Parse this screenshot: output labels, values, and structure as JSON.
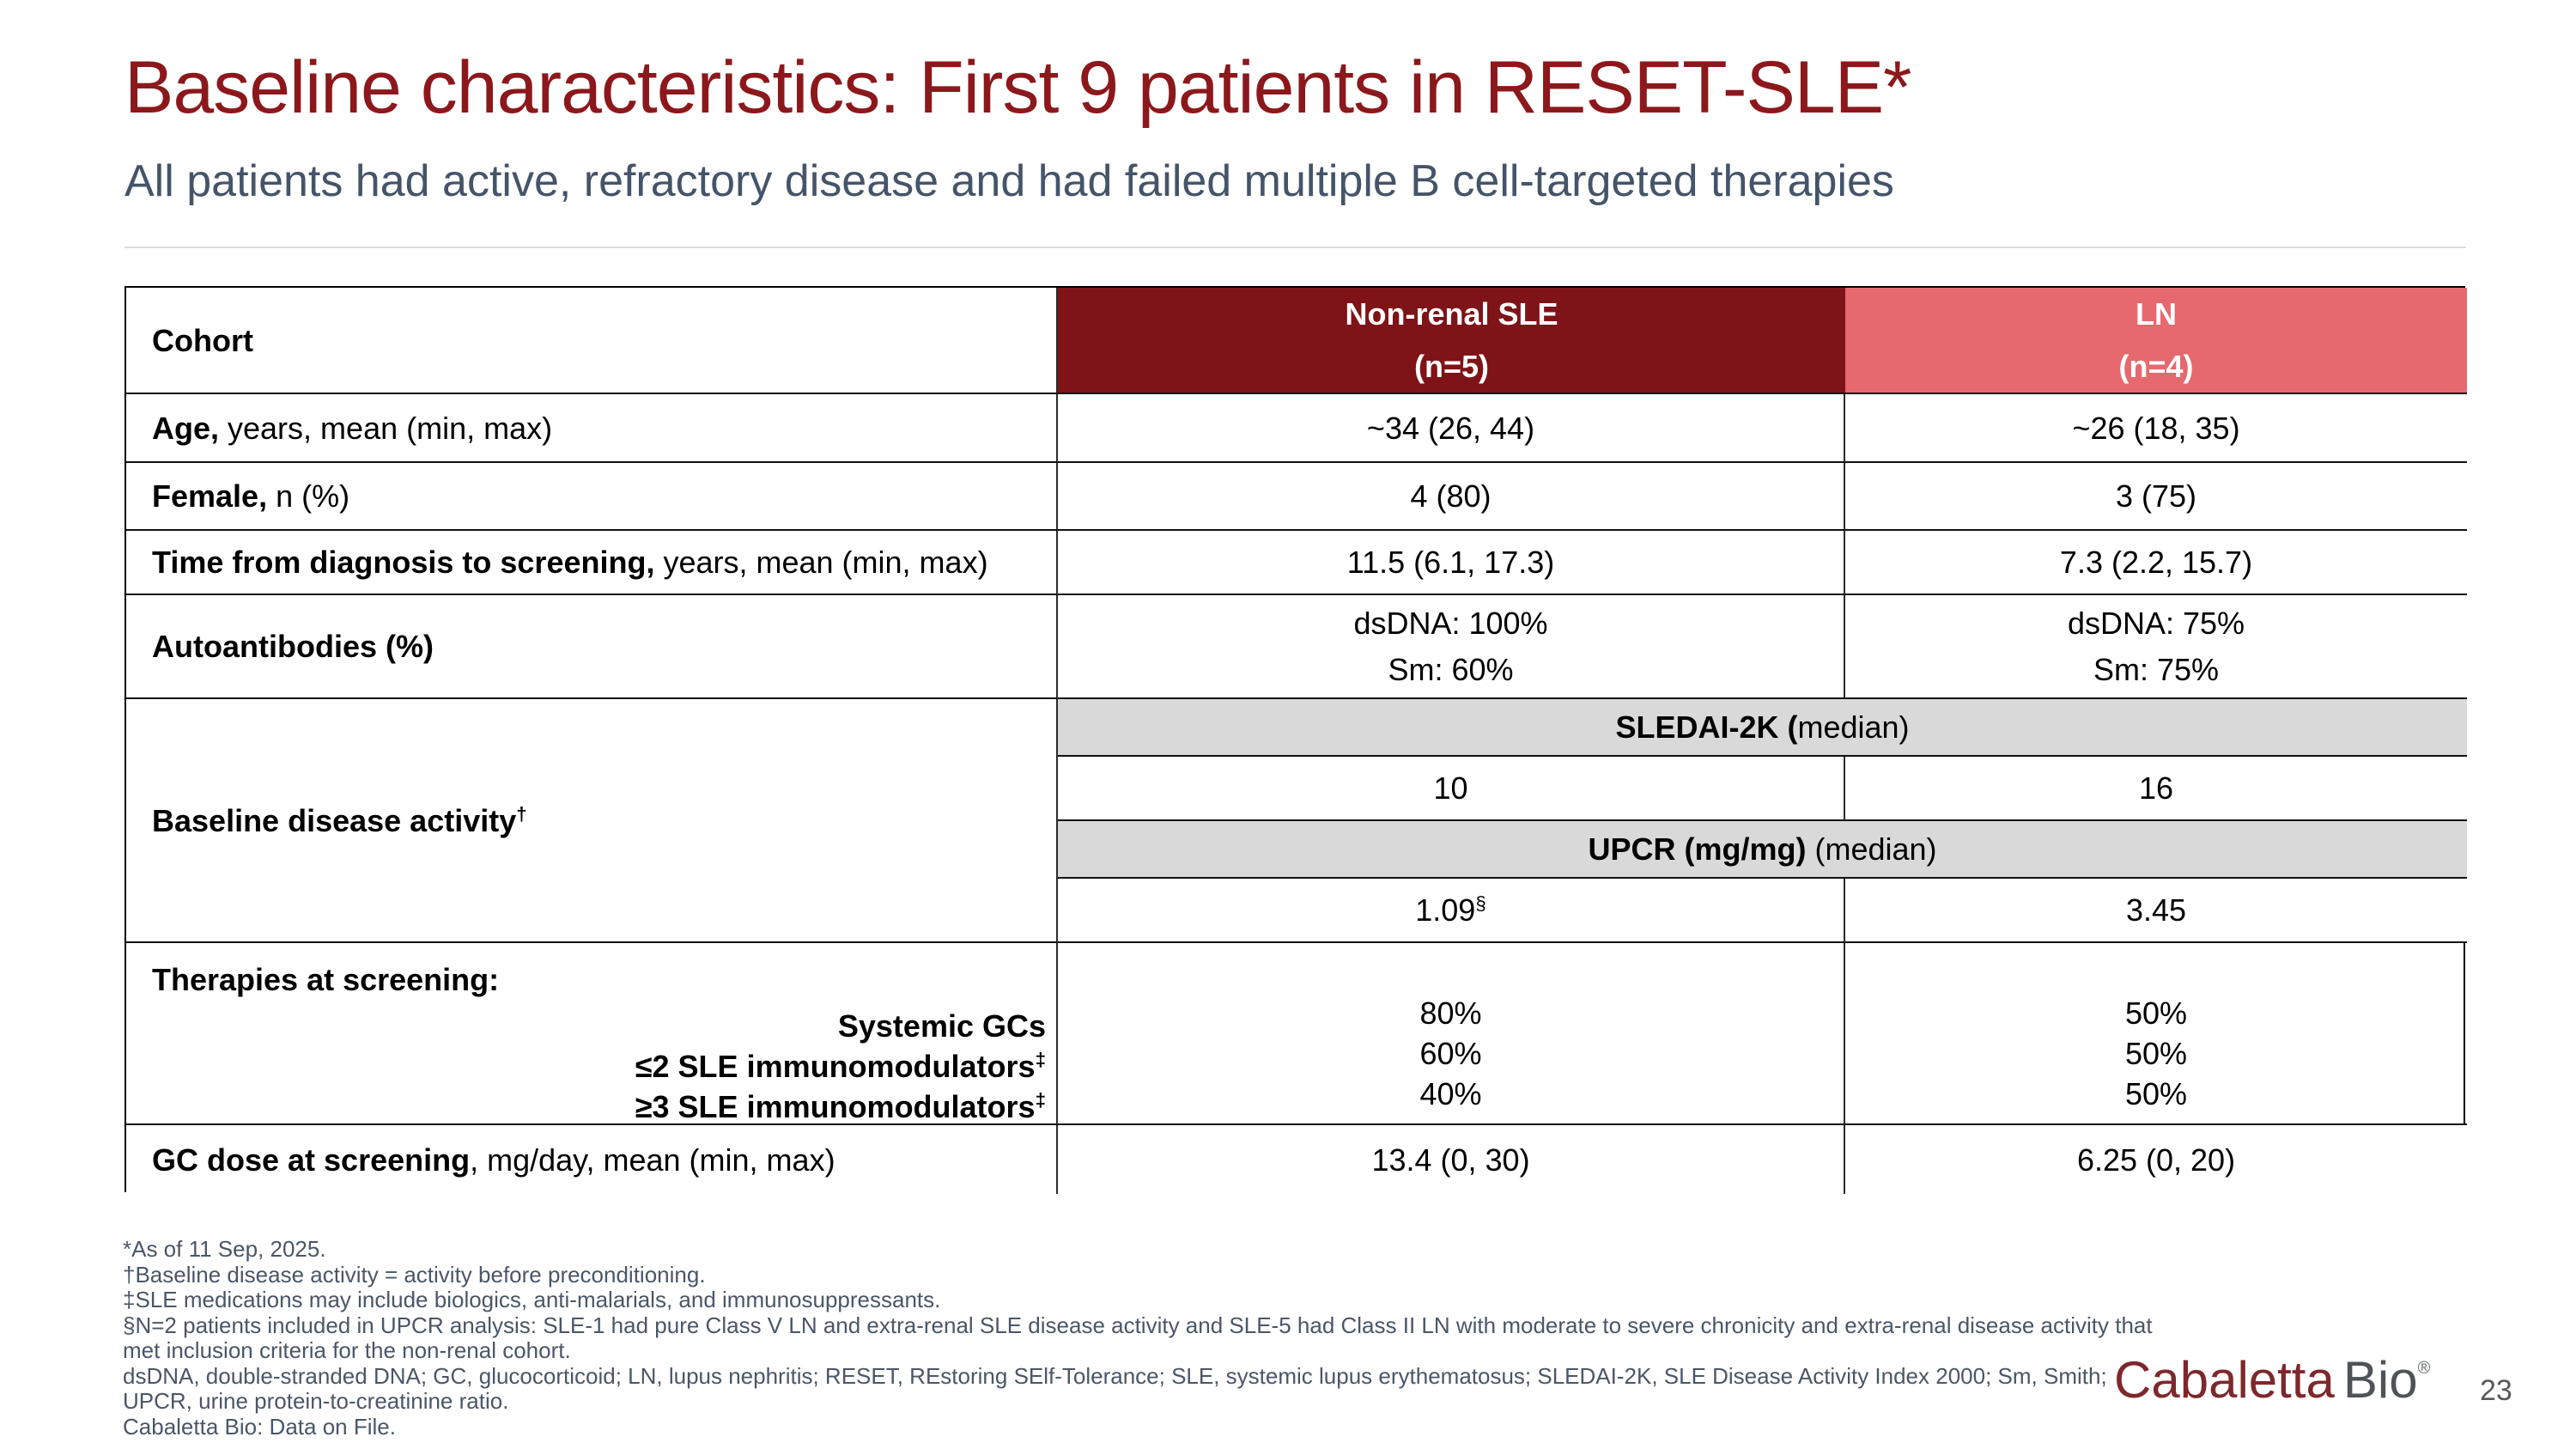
{
  "colors": {
    "title-red": "#8C181C",
    "slate": "#44546A",
    "accent-dark-red": "#7E1418",
    "accent-salmon": "#E5696F",
    "band-gray": "#D9D9D9",
    "logo-red": "#7E282B",
    "logo-gray": "#4F5357"
  },
  "slide": {
    "title": "Baseline characteristics: First 9 patients in RESET-SLE*",
    "subtitle": "All patients had active, refractory disease and had failed multiple B cell-targeted therapies",
    "page_number": "23",
    "logo_part1": "Cabaletta",
    "logo_part2": "Bio",
    "logo_registered": "®"
  },
  "table": {
    "header": {
      "cohort": "Cohort",
      "col2_line1": "Non-renal SLE",
      "col2_line2": "(n=5)",
      "col3_line1": "LN",
      "col3_line2": "(n=4)"
    },
    "rows": [
      {
        "label_bold": "Age,",
        "label_rest": " years, mean (min, max)",
        "v1": "~34 (26, 44)",
        "v2": "~26 (18, 35)"
      },
      {
        "label_bold": "Female,",
        "label_rest": " n (%)",
        "v1": "4 (80)",
        "v2": "3 (75)"
      },
      {
        "label_bold": "Time from diagnosis to screening,",
        "label_rest": " years, mean (min, max)",
        "v1": "11.5 (6.1, 17.3)",
        "v2": "7.3 (2.2, 15.7)"
      },
      {
        "label_bold": "Autoantibodies (%)",
        "label_rest": "",
        "v1a": "dsDNA: 100%",
        "v1b": "Sm: 60%",
        "v2a": "dsDNA: 75%",
        "v2b": "Sm: 75%"
      }
    ],
    "baseline_activity": {
      "label": "Baseline disease activity",
      "label_sup": "†",
      "sledai_band_bold": "SLEDAI-2K (",
      "sledai_band_rest": "median)",
      "sledai_v1": "10",
      "sledai_v2": "16",
      "upcr_band_bold": "UPCR (mg/mg)",
      "upcr_band_rest": " (median)",
      "upcr_v1": "1.09",
      "upcr_v1_sup": "§",
      "upcr_v2": "3.45"
    },
    "therapies": {
      "heading": "Therapies at screening:",
      "items": [
        {
          "text": "Systemic GCs",
          "sup": ""
        },
        {
          "text": "≤2 SLE immunomodulators",
          "sup": "‡"
        },
        {
          "text": "≥3 SLE immunomodulators",
          "sup": "‡"
        }
      ],
      "v1": [
        "80%",
        "60%",
        "40%"
      ],
      "v2": [
        "50%",
        "50%",
        "50%"
      ]
    },
    "gc_dose": {
      "label_bold": "GC dose at screening",
      "label_rest": ", mg/day, mean (min, max)",
      "v1": "13.4 (0, 30)",
      "v2": "6.25 (0, 20)"
    }
  },
  "footnotes": [
    "*As of 11 Sep, 2025.",
    "†Baseline disease activity = activity before preconditioning.",
    "‡SLE medications may include biologics, anti-malarials, and immunosuppressants.",
    "§N=2 patients included in UPCR analysis: SLE-1 had pure Class V LN and extra-renal SLE disease activity and SLE-5 had Class II LN with moderate to severe chronicity and extra-renal disease activity that",
    "met inclusion criteria for the non-renal cohort.",
    "dsDNA, double-stranded DNA; GC, glucocorticoid; LN, lupus nephritis; RESET, REstoring SElf-Tolerance; SLE, systemic lupus erythematosus; SLEDAI-2K, SLE Disease Activity Index 2000; Sm, Smith;",
    "UPCR, urine protein-to-creatinine ratio.",
    "Cabaletta Bio: Data on File."
  ]
}
